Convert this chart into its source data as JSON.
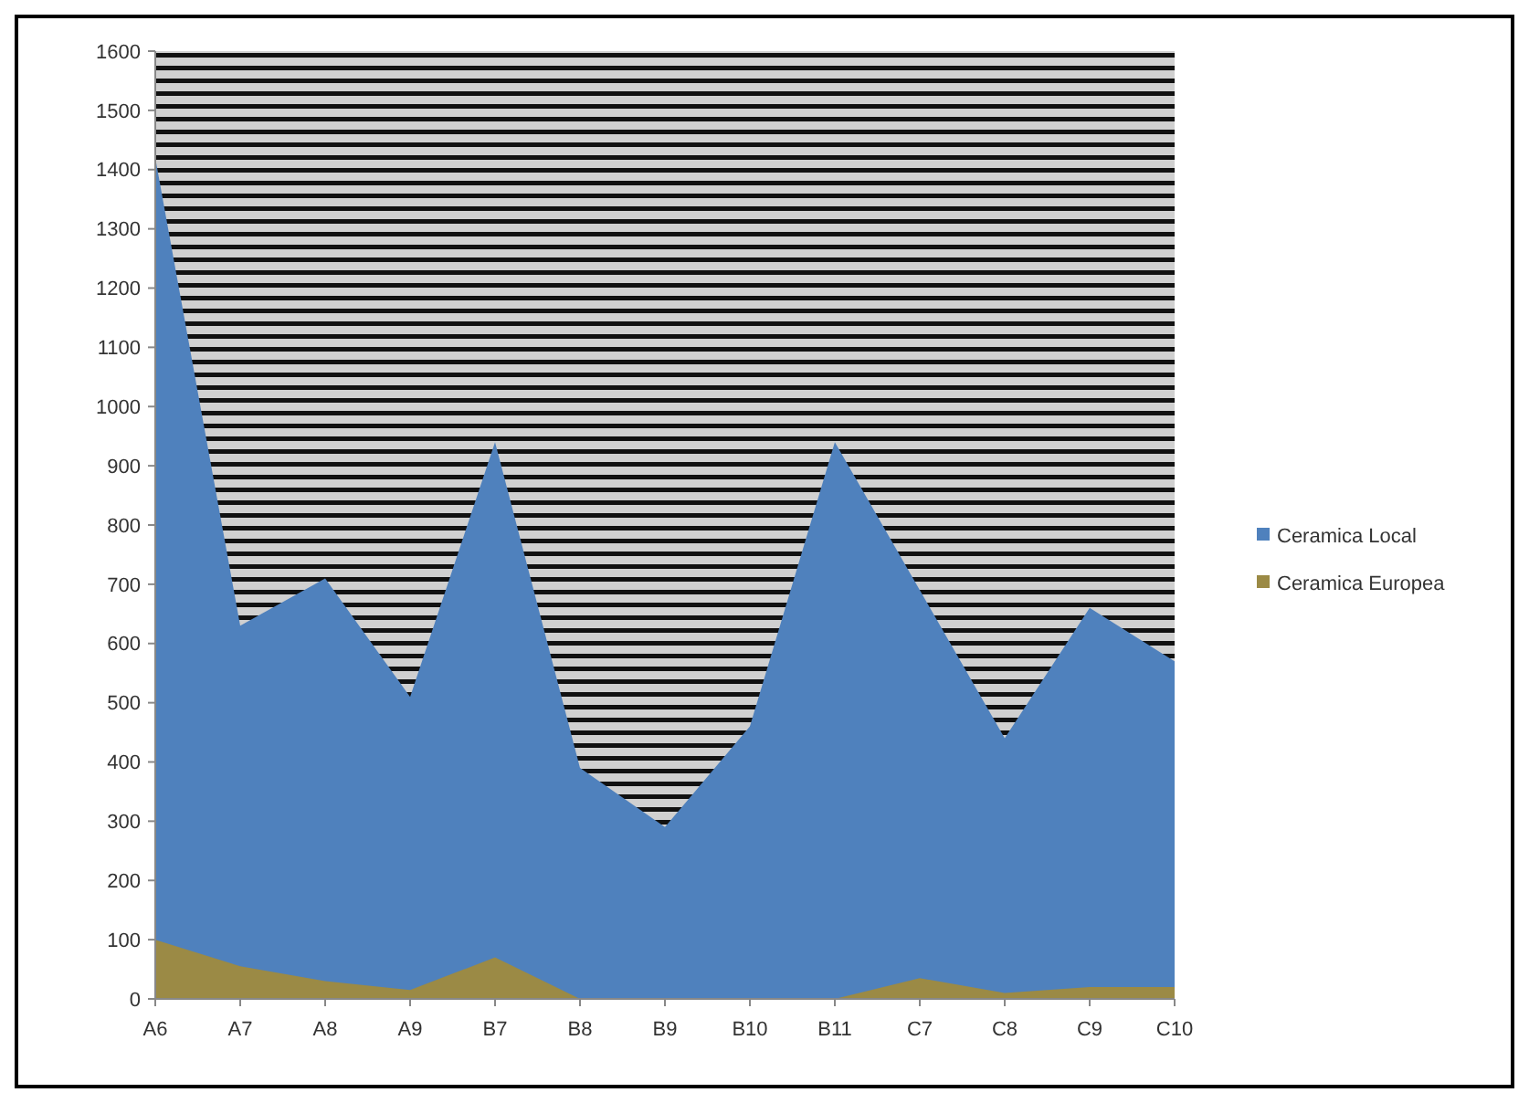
{
  "chart_data": {
    "type": "area",
    "categories": [
      "A6",
      "A7",
      "A8",
      "A9",
      "B7",
      "B8",
      "B9",
      "B10",
      "B11",
      "C7",
      "C8",
      "C9",
      "C10"
    ],
    "series": [
      {
        "name": "Ceramica Local",
        "color": "#4f81bd",
        "values": [
          1420,
          630,
          710,
          510,
          940,
          390,
          290,
          460,
          940,
          690,
          440,
          660,
          570
        ]
      },
      {
        "name": "Ceramica Europea",
        "color": "#9b8a45",
        "values": [
          100,
          55,
          30,
          15,
          70,
          0,
          0,
          0,
          0,
          35,
          10,
          20,
          20
        ]
      }
    ],
    "ylim": [
      0,
      1600
    ],
    "yticks": [
      0,
      100,
      200,
      300,
      400,
      500,
      600,
      700,
      800,
      900,
      1000,
      1100,
      1200,
      1300,
      1400,
      1500,
      1600
    ],
    "legend": "right"
  }
}
